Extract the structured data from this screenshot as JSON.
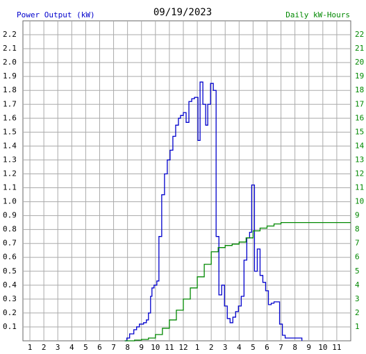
{
  "chart_data": {
    "type": "line",
    "step": true,
    "title": "09/19/2023",
    "grid": true,
    "xlim": [
      0.5,
      24
    ],
    "xticks": [
      1,
      2,
      3,
      4,
      5,
      6,
      7,
      8,
      9,
      10,
      11,
      12,
      {
        "value": 13,
        "label": "1"
      },
      {
        "value": 14,
        "label": "2"
      },
      {
        "value": 15,
        "label": "3"
      },
      {
        "value": 16,
        "label": "4"
      },
      {
        "value": 17,
        "label": "5"
      },
      {
        "value": 18,
        "label": "6"
      },
      {
        "value": 19,
        "label": "7"
      },
      {
        "value": 20,
        "label": "8"
      },
      {
        "value": 21,
        "label": "9"
      },
      {
        "value": 22,
        "label": "10"
      },
      {
        "value": 23,
        "label": "11"
      }
    ],
    "ylim": [
      0,
      2.3
    ],
    "yticks": [
      0.1,
      0.2,
      0.3,
      0.4,
      0.5,
      0.6,
      0.7,
      0.8,
      0.9,
      {
        "value": 1,
        "label": "1.0"
      },
      1.1,
      1.2,
      1.3,
      1.4,
      1.5,
      1.6,
      1.7,
      1.8,
      1.9,
      {
        "value": 2,
        "label": "2.0"
      },
      2.1,
      2.2
    ],
    "y2lim": [
      0,
      23
    ],
    "y2ticks": [
      1,
      2,
      3,
      4,
      5,
      6,
      7,
      8,
      9,
      10,
      11,
      12,
      13,
      14,
      15,
      16,
      17,
      18,
      19,
      20,
      21,
      22
    ],
    "series": [
      {
        "name": "Power Output (kW)",
        "color": "#0000cc",
        "x": [
          7.8,
          7.95,
          8.15,
          8.45,
          8.65,
          8.85,
          9.15,
          9.35,
          9.5,
          9.65,
          9.75,
          9.9,
          10.1,
          10.25,
          10.45,
          10.65,
          10.85,
          11.05,
          11.25,
          11.45,
          11.65,
          11.8,
          12.0,
          12.2,
          12.4,
          12.6,
          12.8,
          13.05,
          13.2,
          13.4,
          13.6,
          13.75,
          13.95,
          14.15,
          14.35,
          14.55,
          14.75,
          14.95,
          15.15,
          15.35,
          15.55,
          15.75,
          15.95,
          16.15,
          16.35,
          16.55,
          16.75,
          16.9,
          17.1,
          17.3,
          17.5,
          17.7,
          17.9,
          18.1,
          18.3,
          18.5,
          18.7,
          18.9,
          19.1,
          19.3,
          19.8,
          20.4,
          20.5
        ],
        "values": [
          0,
          0.02,
          0.05,
          0.08,
          0.1,
          0.12,
          0.13,
          0.15,
          0.2,
          0.32,
          0.38,
          0.4,
          0.43,
          0.75,
          1.05,
          1.2,
          1.3,
          1.37,
          1.47,
          1.55,
          1.6,
          1.62,
          1.64,
          1.57,
          1.72,
          1.74,
          1.75,
          1.44,
          1.86,
          1.7,
          1.55,
          1.7,
          1.85,
          1.8,
          0.75,
          0.33,
          0.4,
          0.25,
          0.16,
          0.13,
          0.17,
          0.21,
          0.25,
          0.32,
          0.58,
          0.74,
          0.78,
          1.12,
          0.5,
          0.66,
          0.47,
          0.42,
          0.36,
          0.26,
          0.27,
          0.28,
          0.28,
          0.12,
          0.04,
          0.02,
          0.02,
          0.02,
          0
        ]
      },
      {
        "name": "Daily kW-Hours",
        "color": "#008800",
        "axis": "y2",
        "x": [
          7.8,
          8.5,
          9,
          9.5,
          10,
          10.5,
          11,
          11.5,
          12,
          12.5,
          13,
          13.5,
          14,
          14.5,
          15,
          15.5,
          16,
          16.5,
          17,
          17.5,
          18,
          18.5,
          19,
          24
        ],
        "values": [
          0,
          0.05,
          0.1,
          0.2,
          0.45,
          0.9,
          1.5,
          2.2,
          3.0,
          3.8,
          4.6,
          5.5,
          6.4,
          6.7,
          6.85,
          6.95,
          7.1,
          7.4,
          7.9,
          8.1,
          8.25,
          8.4,
          8.5,
          8.5
        ]
      }
    ]
  }
}
